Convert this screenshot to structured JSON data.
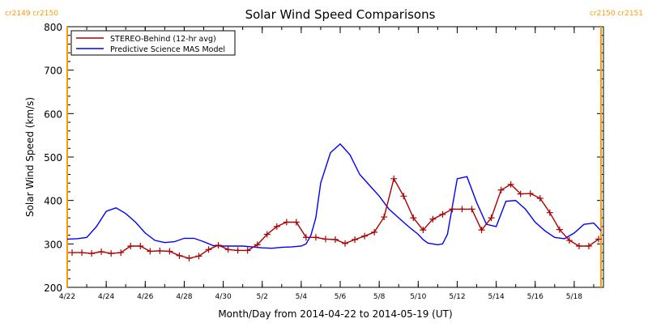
{
  "chart_data": {
    "type": "line",
    "title": "Solar Wind Speed Comparisons",
    "xlabel": "Month/Day from 2014-04-22 to 2014-05-19 (UT)",
    "ylabel": "Solar Wind Speed (km/s)",
    "xlim": [
      "2014-04-22",
      "2014-05-19T12:00"
    ],
    "ylim": [
      200,
      800
    ],
    "x_ticks": [
      {
        "date": "2014-04-22",
        "label": "4/22"
      },
      {
        "date": "2014-04-24",
        "label": "4/24"
      },
      {
        "date": "2014-04-26",
        "label": "4/26"
      },
      {
        "date": "2014-04-28",
        "label": "4/28"
      },
      {
        "date": "2014-04-30",
        "label": "4/30"
      },
      {
        "date": "2014-05-02",
        "label": "5/2"
      },
      {
        "date": "2014-05-04",
        "label": "5/4"
      },
      {
        "date": "2014-05-06",
        "label": "5/6"
      },
      {
        "date": "2014-05-08",
        "label": "5/8"
      },
      {
        "date": "2014-05-10",
        "label": "5/10"
      },
      {
        "date": "2014-05-12",
        "label": "5/12"
      },
      {
        "date": "2014-05-14",
        "label": "5/14"
      },
      {
        "date": "2014-05-16",
        "label": "5/16"
      },
      {
        "date": "2014-05-18",
        "label": "5/18"
      }
    ],
    "y_ticks": [
      200,
      300,
      400,
      500,
      600,
      700,
      800
    ],
    "legend": {
      "position": "top-left",
      "entries": [
        {
          "label": "STEREO-Behind (12-hr avg)",
          "color": "#aa0000"
        },
        {
          "label": "Predictive Science MAS Model",
          "color": "#0000ff"
        }
      ]
    },
    "markers": [
      {
        "date": "2014-04-22",
        "label_left": "cr2149",
        "label_right": "cr2150",
        "color": "#ff9900"
      },
      {
        "date": "2014-05-19T09:00",
        "label_left": "cr2150",
        "label_right": "cr2151",
        "color": "#ff9900"
      }
    ],
    "series": [
      {
        "name": "STEREO-Behind (12-hr avg)",
        "color": "#aa0000",
        "marker": "plus",
        "x": [
          "2014-04-22T06:00",
          "2014-04-22T18:00",
          "2014-04-23T06:00",
          "2014-04-23T18:00",
          "2014-04-24T06:00",
          "2014-04-24T18:00",
          "2014-04-25T06:00",
          "2014-04-25T18:00",
          "2014-04-26T06:00",
          "2014-04-26T18:00",
          "2014-04-27T06:00",
          "2014-04-27T18:00",
          "2014-04-28T06:00",
          "2014-04-28T18:00",
          "2014-04-29T06:00",
          "2014-04-29T18:00",
          "2014-04-30T06:00",
          "2014-04-30T18:00",
          "2014-05-01T06:00",
          "2014-05-01T18:00",
          "2014-05-02T06:00",
          "2014-05-02T18:00",
          "2014-05-03T06:00",
          "2014-05-03T18:00",
          "2014-05-04T06:00",
          "2014-05-04T18:00",
          "2014-05-05T06:00",
          "2014-05-05T18:00",
          "2014-05-06T06:00",
          "2014-05-06T18:00",
          "2014-05-07T06:00",
          "2014-05-07T18:00",
          "2014-05-08T06:00",
          "2014-05-08T18:00",
          "2014-05-09T06:00",
          "2014-05-09T18:00",
          "2014-05-10T06:00",
          "2014-05-10T18:00",
          "2014-05-11T06:00",
          "2014-05-11T18:00",
          "2014-05-12T06:00",
          "2014-05-12T18:00",
          "2014-05-13T06:00",
          "2014-05-13T18:00",
          "2014-05-14T06:00",
          "2014-05-14T18:00",
          "2014-05-15T06:00",
          "2014-05-15T18:00",
          "2014-05-16T06:00",
          "2014-05-16T18:00",
          "2014-05-17T06:00",
          "2014-05-17T18:00",
          "2014-05-18T06:00",
          "2014-05-18T18:00",
          "2014-05-19T06:00"
        ],
        "y": [
          280,
          280,
          278,
          282,
          278,
          280,
          295,
          295,
          283,
          284,
          283,
          273,
          267,
          272,
          287,
          297,
          287,
          285,
          285,
          298,
          322,
          340,
          350,
          350,
          315,
          315,
          311,
          310,
          301,
          310,
          318,
          327,
          362,
          450,
          410,
          360,
          332,
          357,
          368,
          380,
          380,
          380,
          332,
          360,
          424,
          437,
          415,
          416,
          405,
          372,
          333,
          308,
          295,
          295,
          311
        ]
      },
      {
        "name": "Predictive Science MAS Model",
        "color": "#0000ff",
        "x": [
          "2014-04-22",
          "2014-04-22T12:00",
          "2014-04-23",
          "2014-04-23T12:00",
          "2014-04-24",
          "2014-04-24T12:00",
          "2014-04-25",
          "2014-04-25T12:00",
          "2014-04-26",
          "2014-04-26T12:00",
          "2014-04-27",
          "2014-04-27T12:00",
          "2014-04-28",
          "2014-04-28T12:00",
          "2014-04-29",
          "2014-04-29T12:00",
          "2014-04-30",
          "2014-04-30T12:00",
          "2014-05-01",
          "2014-05-01T12:00",
          "2014-05-02",
          "2014-05-02T12:00",
          "2014-05-03",
          "2014-05-03T12:00",
          "2014-05-04",
          "2014-05-04T06:00",
          "2014-05-04T12:00",
          "2014-05-04T18:00",
          "2014-05-05",
          "2014-05-05T12:00",
          "2014-05-06",
          "2014-05-06T12:00",
          "2014-05-07",
          "2014-05-07T12:00",
          "2014-05-08",
          "2014-05-08T12:00",
          "2014-05-09",
          "2014-05-09T12:00",
          "2014-05-10",
          "2014-05-10T06:00",
          "2014-05-10T12:00",
          "2014-05-11",
          "2014-05-11T06:00",
          "2014-05-11T12:00",
          "2014-05-12",
          "2014-05-12T12:00",
          "2014-05-13",
          "2014-05-13T12:00",
          "2014-05-14",
          "2014-05-14T12:00",
          "2014-05-15",
          "2014-05-15T12:00",
          "2014-05-16",
          "2014-05-16T12:00",
          "2014-05-17",
          "2014-05-17T12:00",
          "2014-05-18",
          "2014-05-18T12:00",
          "2014-05-19",
          "2014-05-19T09:00"
        ],
        "y": [
          311,
          312,
          315,
          340,
          375,
          383,
          370,
          350,
          325,
          308,
          303,
          305,
          313,
          313,
          305,
          296,
          295,
          295,
          295,
          293,
          291,
          290,
          292,
          293,
          295,
          300,
          320,
          360,
          440,
          510,
          530,
          505,
          460,
          435,
          410,
          380,
          360,
          340,
          322,
          310,
          302,
          298,
          300,
          322,
          450,
          455,
          395,
          345,
          340,
          398,
          400,
          380,
          350,
          330,
          315,
          312,
          325,
          345,
          348,
          330
        ]
      }
    ]
  }
}
